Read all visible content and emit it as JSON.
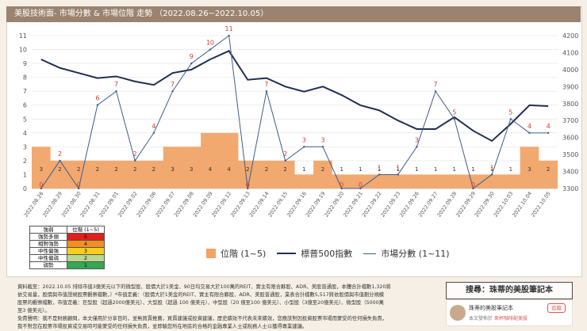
{
  "title": "美股技術面- 市場分數 & 市場位階 走勢 （2022.08.26~2022.10.05）",
  "chart_data": {
    "type": "bar+line",
    "dates": [
      "2022.08.26",
      "2022.08.29",
      "2022.08.30",
      "2022.08.31",
      "2022.09.01",
      "2022.09.02",
      "2022.09.06",
      "2022.09.07",
      "2022.09.08",
      "2022.09.09",
      "2022.09.12",
      "2022.09.13",
      "2022.09.14",
      "2022.09.15",
      "2022.09.16",
      "2022.09.19",
      "2022.09.20",
      "2022.09.21",
      "2022.09.22",
      "2022.09.23",
      "2022.09.26",
      "2022.09.27",
      "2022.09.28",
      "2022.09.29",
      "2022.09.30",
      "2022.10.03",
      "2022.10.04",
      "2022.10.05"
    ],
    "position": [
      3,
      2,
      2,
      2,
      2,
      2,
      2,
      3,
      3,
      4,
      4,
      2,
      2,
      2,
      1,
      2,
      1,
      1,
      1,
      1,
      1,
      1,
      1,
      1,
      1,
      1,
      3,
      2
    ],
    "sp500": [
      4060,
      4010,
      3980,
      3950,
      3960,
      3930,
      3910,
      3980,
      4000,
      4060,
      4110,
      3940,
      3950,
      3900,
      3870,
      3900,
      3850,
      3790,
      3760,
      3700,
      3650,
      3650,
      3720,
      3640,
      3580,
      3680,
      3790,
      3785
    ],
    "score": [
      0,
      2,
      0,
      6,
      7,
      2,
      4,
      7,
      9,
      10,
      11,
      0,
      7,
      2,
      3,
      3,
      0,
      0,
      1,
      1,
      3,
      7,
      5,
      0,
      1,
      5,
      4,
      4
    ],
    "left_axis": {
      "min": 0,
      "max": 11,
      "ticks": [
        "0",
        "1",
        "2",
        "3",
        "4",
        "5",
        "6",
        "7",
        "8",
        "9",
        "10",
        "11"
      ]
    },
    "right_axis": {
      "min": 3300,
      "max": 4200,
      "ticks": [
        "3300",
        "3400",
        "3500",
        "3600",
        "3700",
        "3800",
        "3900",
        "4000",
        "4100",
        "4200"
      ]
    },
    "series_names": {
      "position": "位階 (1~5)",
      "sp500": "標普500指數",
      "score": "市場分數 (1~11)"
    },
    "colors": {
      "bar": "#f0a467",
      "sp500": "#1f2f52",
      "score": "#3b5d90",
      "score_label": "#d43a2f",
      "bar_label": "#333333"
    }
  },
  "legend_table": {
    "header": [
      "強弱",
      "位階 (1~5)"
    ],
    "rows": [
      {
        "label": "強勢多頭",
        "value": "5",
        "color": "#e0201b"
      },
      {
        "label": "相對強勢",
        "value": "4",
        "color": "#f38f1f"
      },
      {
        "label": "中性偏強",
        "value": "3",
        "color": "#f7ce1e"
      },
      {
        "label": "中性偏弱",
        "value": "2",
        "color": "#b9d98c"
      },
      {
        "label": "弱勢",
        "value": "1",
        "color": "#34a853"
      }
    ]
  },
  "notes": {
    "line1": "資料截至：2022.10.05 排除市值3億美元以下的微型股、股價大於1美金、90日均交易大於100萬的REIT、實主有限合夥股、ADR、美股普通股，本體合計檔數1,320將",
    "line2": "依交易量，股價與市值證規股票觀察檔數，）*市值定義：（股價大於1美金的REIT、實主有限合夥股、ADR、美股普通股，業表合計檔數5,517將依股價與市值劃分規模",
    "line3": "股票的觀察檔數，市值定義：巨型股（超過2000億美元）、大型股（超過 100 億美元）、中型股（20 億至100 億美元）、小型股（3億至20億美元）、微型股（5000萬",
    "line4": "至3 億美元）。",
    "line5": "免責聲明：我不是財務顧問，本文僅用於分享目的，並無買賣推薦，買賣建議或投資建議，歷史績效不代表未來績效，您應該對因投資股票市場而蒙受的任何損失負責，",
    "line6": "我不對您在股票市場投資或交易時可能蒙受的任何損失負責，並即驗您所在地區的合格的金融專業人士或稅務人士以獲得專業建議。"
  },
  "search_box": "搜尋：珠蒂的美股筆記本",
  "author": {
    "name": "珠蒂的美股筆記本",
    "follow": "追蹤",
    "sub_prefix": "本文發佈於",
    "publication": "來杯咖啡配美股"
  }
}
